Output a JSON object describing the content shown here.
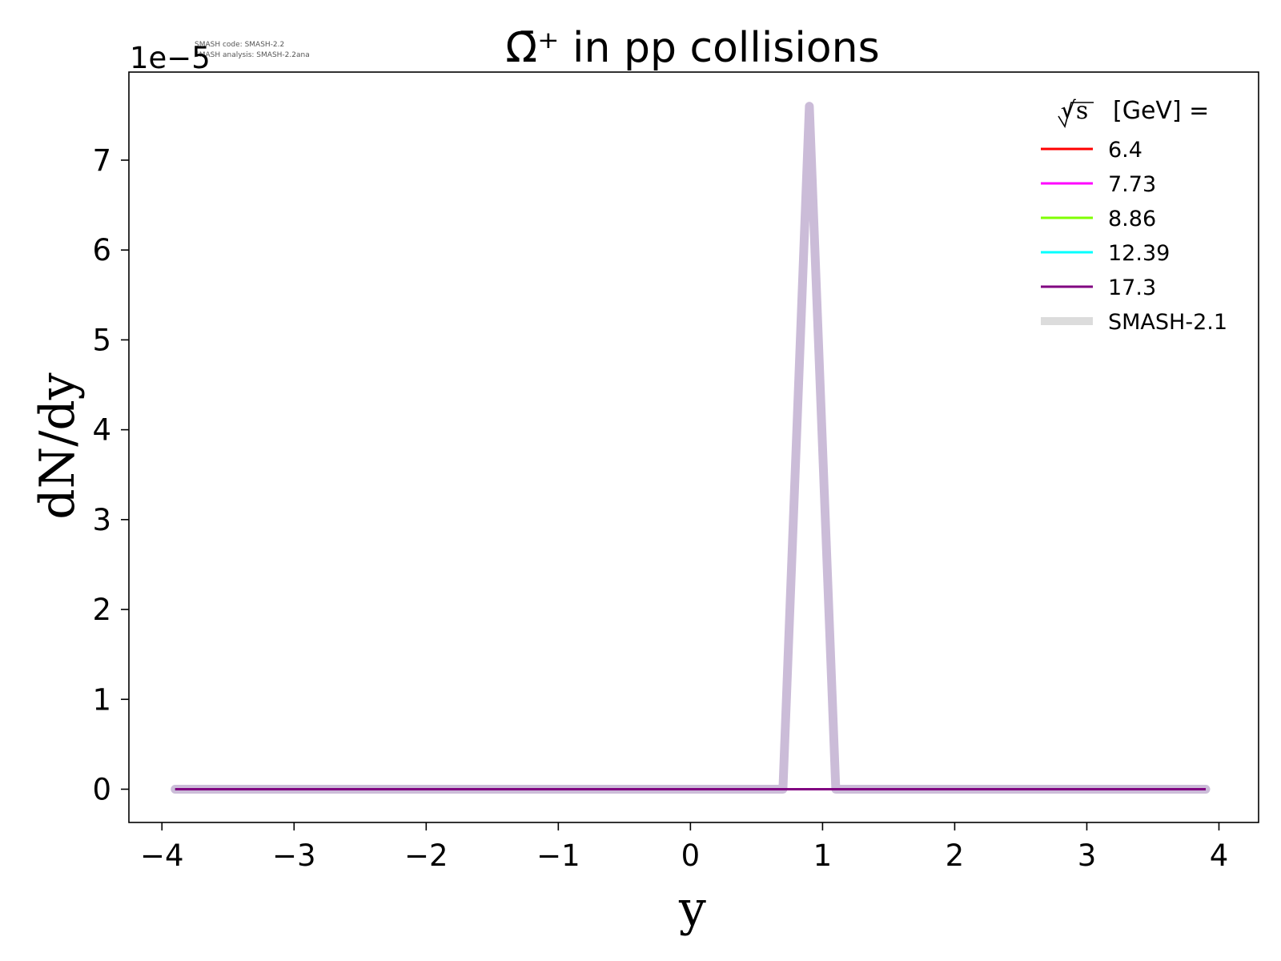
{
  "chart_data": {
    "type": "line",
    "title": "Ω̄⁺ in pp collisions",
    "xlabel": "y",
    "ylabel": "dN/dy",
    "y_offset_label": "1e−5",
    "xlim": [
      -4.25,
      4.3
    ],
    "ylim": [
      -0.37,
      7.98
    ],
    "xticks": [
      -4,
      -3,
      -2,
      -1,
      0,
      1,
      2,
      3,
      4
    ],
    "xtick_labels": [
      "−4",
      "−3",
      "−2",
      "−1",
      "0",
      "1",
      "2",
      "3",
      "4"
    ],
    "yticks": [
      0,
      1,
      2,
      3,
      4,
      5,
      6,
      7
    ],
    "ytick_labels": [
      "0",
      "1",
      "2",
      "3",
      "4",
      "5",
      "6",
      "7"
    ],
    "legend": {
      "title_prefix": "√s",
      "title_suffix": "[GeV] =",
      "placement": "top-right"
    },
    "series": [
      {
        "name": "6.4",
        "color": "#ff0000",
        "x": [
          -3.9,
          3.9
        ],
        "y": [
          0,
          0
        ]
      },
      {
        "name": "7.73",
        "color": "#ff00ff",
        "x": [
          -3.9,
          3.9
        ],
        "y": [
          0,
          0
        ]
      },
      {
        "name": "8.86",
        "color": "#7fff00",
        "x": [
          -3.9,
          3.9
        ],
        "y": [
          0,
          0
        ]
      },
      {
        "name": "12.39",
        "color": "#00ffff",
        "x": [
          -3.9,
          3.9
        ],
        "y": [
          0,
          0
        ]
      },
      {
        "name": "17.3",
        "color": "#800080",
        "x": [
          -3.9,
          3.9
        ],
        "y": [
          0,
          0
        ]
      }
    ],
    "reference_series": {
      "name": "SMASH-2.1",
      "legend_color": "#dcdcdc",
      "color": "#cbbcd8",
      "x": [
        -3.9,
        0.7,
        0.9,
        1.1,
        3.9
      ],
      "y": [
        0,
        0,
        7.6,
        0,
        0
      ]
    }
  },
  "watermark": {
    "line1": "SMASH code:      SMASH-2.2",
    "line2": "SMASH analysis: SMASH-2.2ana"
  }
}
